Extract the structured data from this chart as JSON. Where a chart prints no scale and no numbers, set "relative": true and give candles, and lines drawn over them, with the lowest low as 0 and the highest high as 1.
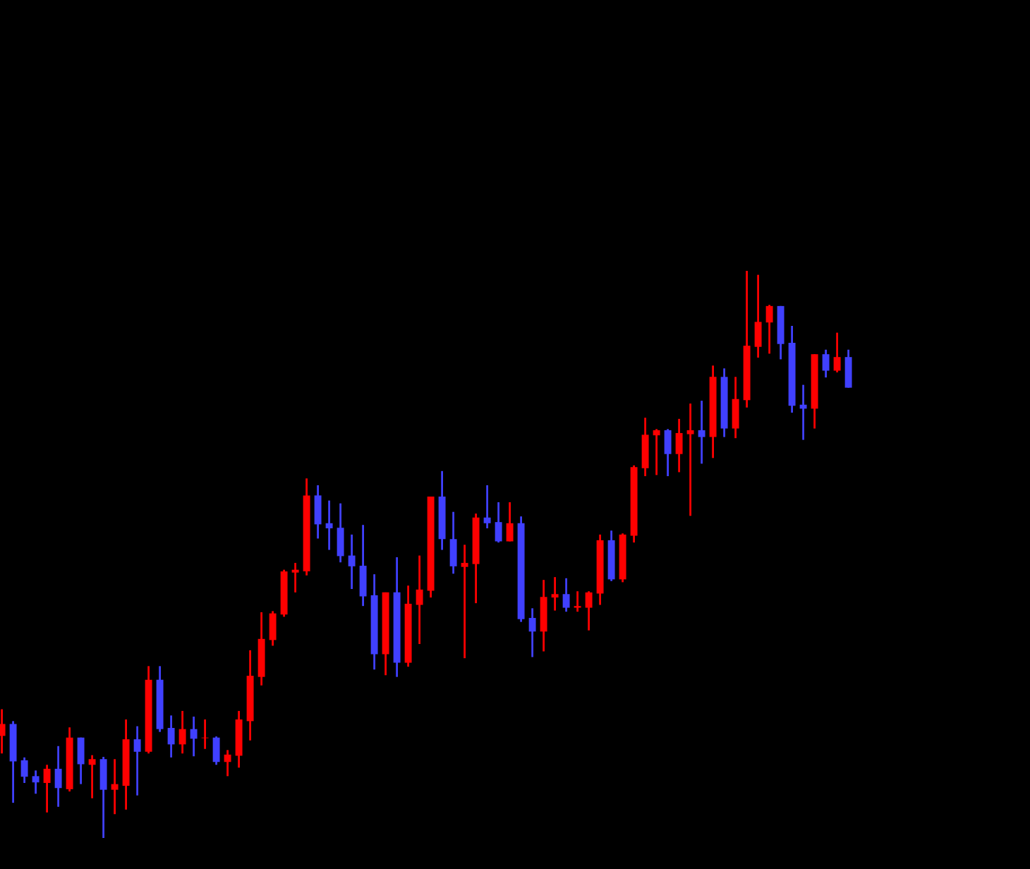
{
  "chart_data": {
    "type": "candlestick",
    "relative": true,
    "categories": [
      null,
      null,
      null,
      null,
      null,
      null,
      null,
      null,
      null,
      null,
      null,
      null,
      null,
      null,
      null,
      null,
      null,
      null,
      null,
      null,
      null,
      null,
      null,
      null,
      null,
      null,
      null,
      null,
      null,
      null,
      null,
      null,
      null,
      null,
      null,
      null,
      null,
      null,
      null,
      null,
      null,
      null,
      null,
      null,
      null,
      null,
      null,
      null,
      null,
      null,
      null,
      null,
      null,
      null,
      null,
      null,
      null,
      null,
      null,
      null,
      null,
      null,
      null,
      null,
      null,
      null,
      null,
      null,
      null,
      null,
      null,
      null,
      null,
      null,
      null,
      null
    ],
    "ohlc": [
      [
        0.18,
        0.227,
        0.149,
        0.201
      ],
      [
        0.201,
        0.206,
        0.062,
        0.135
      ],
      [
        0.137,
        0.142,
        0.097,
        0.108
      ],
      [
        0.109,
        0.119,
        0.078,
        0.098
      ],
      [
        0.097,
        0.129,
        0.045,
        0.122
      ],
      [
        0.122,
        0.162,
        0.055,
        0.088
      ],
      [
        0.086,
        0.195,
        0.082,
        0.177
      ],
      [
        0.177,
        0.177,
        0.095,
        0.13
      ],
      [
        0.129,
        0.146,
        0.07,
        0.139
      ],
      [
        0.139,
        0.143,
        0,
        0.085
      ],
      [
        0.085,
        0.139,
        0.042,
        0.095
      ],
      [
        0.092,
        0.209,
        0.05,
        0.174
      ],
      [
        0.174,
        0.197,
        0.075,
        0.152
      ],
      [
        0.152,
        0.303,
        0.149,
        0.279
      ],
      [
        0.279,
        0.303,
        0.187,
        0.192
      ],
      [
        0.194,
        0.216,
        0.142,
        0.165
      ],
      [
        0.165,
        0.224,
        0.149,
        0.192
      ],
      [
        0.192,
        0.214,
        0.144,
        0.175
      ],
      [
        0.176,
        0.209,
        0.157,
        0.177
      ],
      [
        0.177,
        0.179,
        0.129,
        0.134
      ],
      [
        0.134,
        0.155,
        0.109,
        0.147
      ],
      [
        0.145,
        0.224,
        0.124,
        0.209
      ],
      [
        0.206,
        0.331,
        0.172,
        0.286
      ],
      [
        0.284,
        0.398,
        0.269,
        0.351
      ],
      [
        0.349,
        0.4,
        0.339,
        0.396
      ],
      [
        0.394,
        0.473,
        0.39,
        0.47
      ],
      [
        0.468,
        0.485,
        0.433,
        0.473
      ],
      [
        0.47,
        0.634,
        0.463,
        0.604
      ],
      [
        0.604,
        0.622,
        0.528,
        0.553
      ],
      [
        0.555,
        0.595,
        0.508,
        0.546
      ],
      [
        0.547,
        0.59,
        0.486,
        0.497
      ],
      [
        0.498,
        0.535,
        0.439,
        0.479
      ],
      [
        0.48,
        0.552,
        0.409,
        0.426
      ],
      [
        0.428,
        0.465,
        0.297,
        0.324
      ],
      [
        0.324,
        0.433,
        0.287,
        0.433
      ],
      [
        0.433,
        0.495,
        0.284,
        0.309
      ],
      [
        0.309,
        0.445,
        0.302,
        0.413
      ],
      [
        0.411,
        0.498,
        0.342,
        0.438
      ],
      [
        0.436,
        0.602,
        0.424,
        0.602
      ],
      [
        0.602,
        0.647,
        0.508,
        0.527
      ],
      [
        0.527,
        0.575,
        0.466,
        0.479
      ],
      [
        0.478,
        0.517,
        0.317,
        0.485
      ],
      [
        0.483,
        0.572,
        0.414,
        0.565
      ],
      [
        0.565,
        0.622,
        0.546,
        0.555
      ],
      [
        0.557,
        0.592,
        0.521,
        0.523
      ],
      [
        0.523,
        0.592,
        0.523,
        0.555
      ],
      [
        0.555,
        0.567,
        0.381,
        0.386
      ],
      [
        0.388,
        0.405,
        0.319,
        0.364
      ],
      [
        0.364,
        0.455,
        0.329,
        0.425
      ],
      [
        0.424,
        0.46,
        0.401,
        0.43
      ],
      [
        0.43,
        0.458,
        0.399,
        0.406
      ],
      [
        0.406,
        0.435,
        0.399,
        0.409
      ],
      [
        0.406,
        0.435,
        0.366,
        0.433
      ],
      [
        0.431,
        0.535,
        0.411,
        0.525
      ],
      [
        0.525,
        0.542,
        0.453,
        0.456
      ],
      [
        0.456,
        0.537,
        0.451,
        0.535
      ],
      [
        0.533,
        0.657,
        0.521,
        0.654
      ],
      [
        0.652,
        0.741,
        0.638,
        0.711
      ],
      [
        0.71,
        0.721,
        0.64,
        0.719
      ],
      [
        0.719,
        0.721,
        0.638,
        0.677
      ],
      [
        0.677,
        0.739,
        0.645,
        0.714
      ],
      [
        0.712,
        0.766,
        0.568,
        0.719
      ],
      [
        0.719,
        0.771,
        0.66,
        0.707
      ],
      [
        0.707,
        0.833,
        0.67,
        0.813
      ],
      [
        0.813,
        0.828,
        0.707,
        0.722
      ],
      [
        0.722,
        0.813,
        0.705,
        0.774
      ],
      [
        0.772,
        1,
        0.759,
        0.868
      ],
      [
        0.866,
        0.993,
        0.847,
        0.91
      ],
      [
        0.909,
        0.94,
        0.854,
        0.938
      ],
      [
        0.938,
        0.938,
        0.844,
        0.871
      ],
      [
        0.873,
        0.903,
        0.75,
        0.762
      ],
      [
        0.764,
        0.799,
        0.702,
        0.757
      ],
      [
        0.757,
        0.853,
        0.722,
        0.853
      ],
      [
        0.853,
        0.861,
        0.812,
        0.824
      ],
      [
        0.824,
        0.891,
        0.821,
        0.848
      ],
      [
        0.848,
        0.861,
        0.794,
        0.794
      ]
    ],
    "colors": [
      "#ff0000",
      "#4040ff",
      "#4040ff",
      "#4040ff",
      "#ff0000",
      "#4040ff",
      "#ff0000",
      "#4040ff",
      "#ff0000",
      "#4040ff",
      "#ff0000",
      "#ff0000",
      "#4040ff",
      "#ff0000",
      "#4040ff",
      "#4040ff",
      "#ff0000",
      "#4040ff",
      "#ff0000",
      "#4040ff",
      "#ff0000",
      "#ff0000",
      "#ff0000",
      "#ff0000",
      "#ff0000",
      "#ff0000",
      "#ff0000",
      "#ff0000",
      "#4040ff",
      "#4040ff",
      "#4040ff",
      "#4040ff",
      "#4040ff",
      "#4040ff",
      "#ff0000",
      "#4040ff",
      "#ff0000",
      "#ff0000",
      "#ff0000",
      "#4040ff",
      "#4040ff",
      "#ff0000",
      "#ff0000",
      "#4040ff",
      "#4040ff",
      "#ff0000",
      "#4040ff",
      "#4040ff",
      "#ff0000",
      "#ff0000",
      "#4040ff",
      "#ff0000",
      "#ff0000",
      "#ff0000",
      "#4040ff",
      "#ff0000",
      "#ff0000",
      "#ff0000",
      "#ff0000",
      "#4040ff",
      "#ff0000",
      "#ff0000",
      "#4040ff",
      "#ff0000",
      "#4040ff",
      "#ff0000",
      "#ff0000",
      "#ff0000",
      "#ff0000",
      "#4040ff",
      "#4040ff",
      "#4040ff",
      "#ff0000",
      "#4040ff",
      "#ff0000",
      "#4040ff"
    ]
  }
}
